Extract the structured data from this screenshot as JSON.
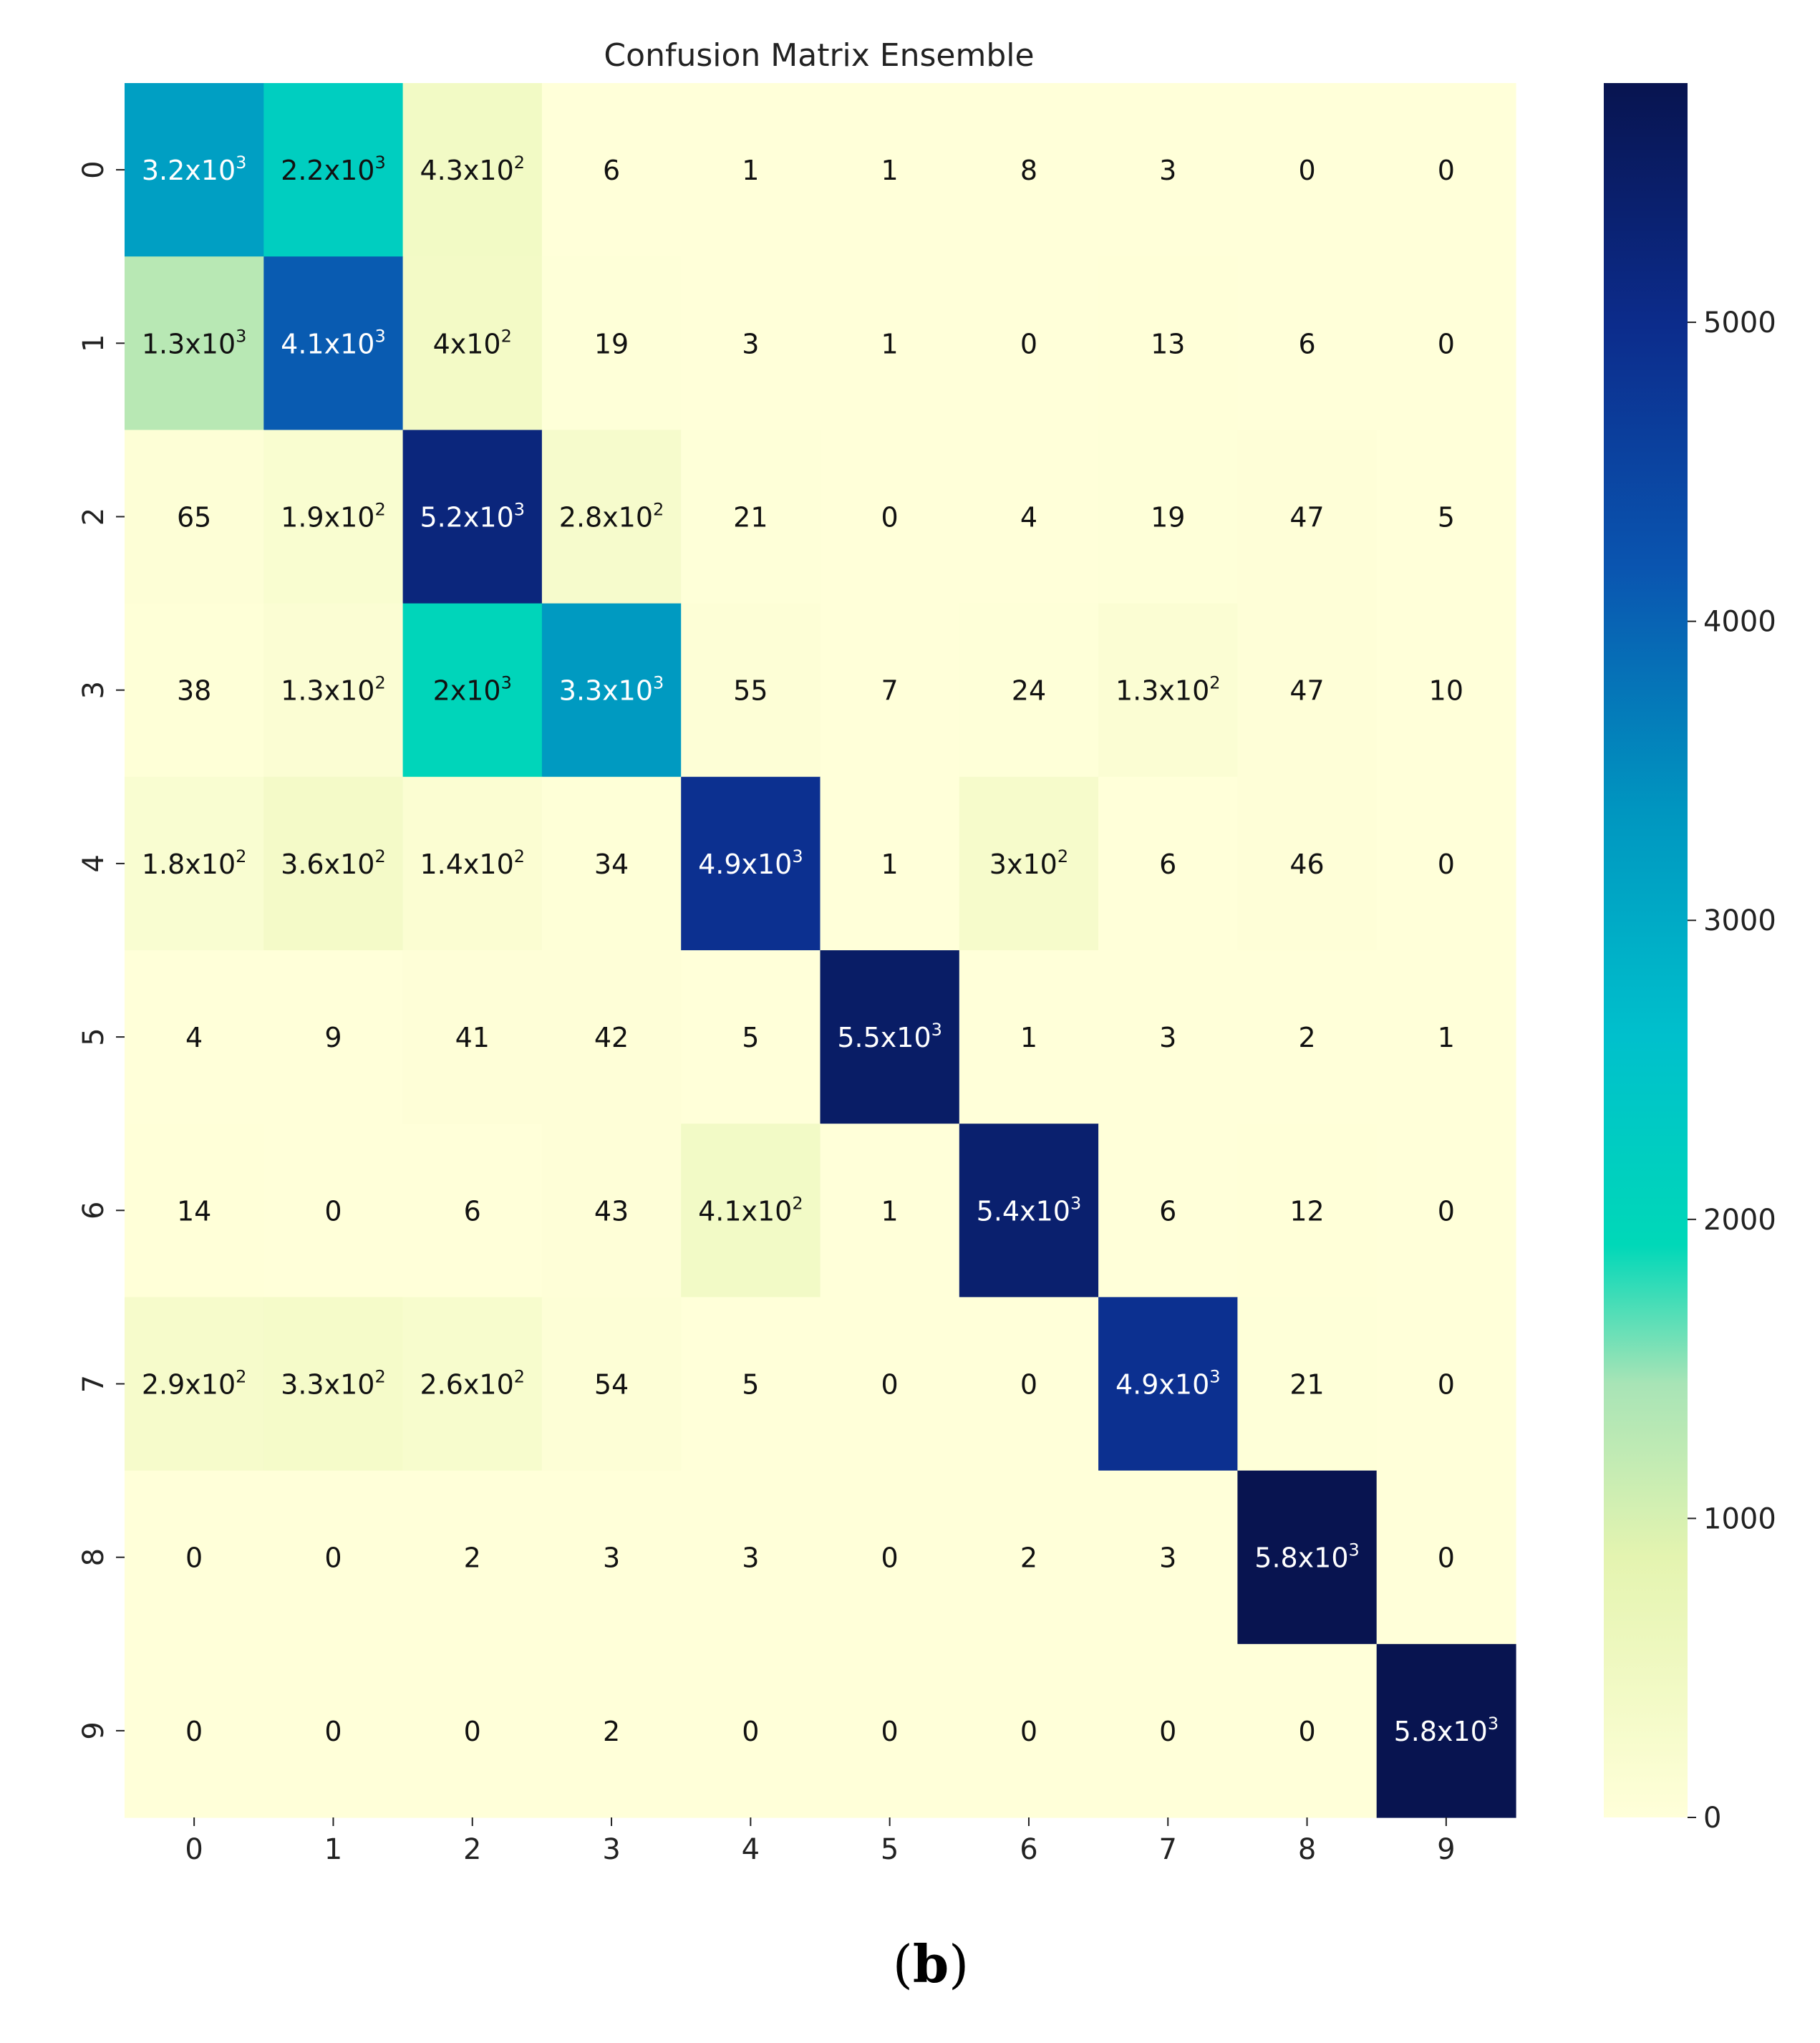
{
  "chart_data": {
    "type": "heatmap",
    "title": "Confusion Matrix Ensemble",
    "x_tick_labels": [
      "0",
      "1",
      "2",
      "3",
      "4",
      "5",
      "6",
      "7",
      "8",
      "9"
    ],
    "y_tick_labels": [
      "0",
      "1",
      "2",
      "3",
      "4",
      "5",
      "6",
      "7",
      "8",
      "9"
    ],
    "values": [
      [
        3200,
        2200,
        430,
        6,
        1,
        1,
        8,
        3,
        0,
        0
      ],
      [
        1300,
        4100,
        400,
        19,
        3,
        1,
        0,
        13,
        6,
        0
      ],
      [
        65,
        190,
        5200,
        280,
        21,
        0,
        4,
        19,
        47,
        5
      ],
      [
        38,
        130,
        2000,
        3300,
        55,
        7,
        24,
        130,
        47,
        10
      ],
      [
        180,
        360,
        140,
        34,
        4900,
        1,
        300,
        6,
        46,
        0
      ],
      [
        4,
        9,
        41,
        42,
        5,
        5500,
        1,
        3,
        2,
        1
      ],
      [
        14,
        0,
        6,
        43,
        410,
        1,
        5400,
        6,
        12,
        0
      ],
      [
        290,
        330,
        260,
        54,
        5,
        0,
        0,
        4900,
        21,
        0
      ],
      [
        0,
        0,
        2,
        3,
        3,
        0,
        2,
        3,
        5800,
        0
      ],
      [
        0,
        0,
        0,
        2,
        0,
        0,
        0,
        0,
        0,
        5800
      ]
    ],
    "cell_labels": [
      [
        [
          "3.2x10",
          "3"
        ],
        [
          "2.2x10",
          "3"
        ],
        [
          "4.3x10",
          "2"
        ],
        [
          "6",
          ""
        ],
        [
          "1",
          ""
        ],
        [
          "1",
          ""
        ],
        [
          "8",
          ""
        ],
        [
          "3",
          ""
        ],
        [
          "0",
          ""
        ],
        [
          "0",
          ""
        ]
      ],
      [
        [
          "1.3x10",
          "3"
        ],
        [
          "4.1x10",
          "3"
        ],
        [
          "4x10",
          "2"
        ],
        [
          "19",
          ""
        ],
        [
          "3",
          ""
        ],
        [
          "1",
          ""
        ],
        [
          "0",
          ""
        ],
        [
          "13",
          ""
        ],
        [
          "6",
          ""
        ],
        [
          "0",
          ""
        ]
      ],
      [
        [
          "65",
          ""
        ],
        [
          "1.9x10",
          "2"
        ],
        [
          "5.2x10",
          "3"
        ],
        [
          "2.8x10",
          "2"
        ],
        [
          "21",
          ""
        ],
        [
          "0",
          ""
        ],
        [
          "4",
          ""
        ],
        [
          "19",
          ""
        ],
        [
          "47",
          ""
        ],
        [
          "5",
          ""
        ]
      ],
      [
        [
          "38",
          ""
        ],
        [
          "1.3x10",
          "2"
        ],
        [
          "2x10",
          "3"
        ],
        [
          "3.3x10",
          "3"
        ],
        [
          "55",
          ""
        ],
        [
          "7",
          ""
        ],
        [
          "24",
          ""
        ],
        [
          "1.3x10",
          "2"
        ],
        [
          "47",
          ""
        ],
        [
          "10",
          ""
        ]
      ],
      [
        [
          "1.8x10",
          "2"
        ],
        [
          "3.6x10",
          "2"
        ],
        [
          "1.4x10",
          "2"
        ],
        [
          "34",
          ""
        ],
        [
          "4.9x10",
          "3"
        ],
        [
          "1",
          ""
        ],
        [
          "3x10",
          "2"
        ],
        [
          "6",
          ""
        ],
        [
          "46",
          ""
        ],
        [
          "0",
          ""
        ]
      ],
      [
        [
          "4",
          ""
        ],
        [
          "9",
          ""
        ],
        [
          "41",
          ""
        ],
        [
          "42",
          ""
        ],
        [
          "5",
          ""
        ],
        [
          "5.5x10",
          "3"
        ],
        [
          "1",
          ""
        ],
        [
          "3",
          ""
        ],
        [
          "2",
          ""
        ],
        [
          "1",
          ""
        ]
      ],
      [
        [
          "14",
          ""
        ],
        [
          "0",
          ""
        ],
        [
          "6",
          ""
        ],
        [
          "43",
          ""
        ],
        [
          "4.1x10",
          "2"
        ],
        [
          "1",
          ""
        ],
        [
          "5.4x10",
          "3"
        ],
        [
          "6",
          ""
        ],
        [
          "12",
          ""
        ],
        [
          "0",
          ""
        ]
      ],
      [
        [
          "2.9x10",
          "2"
        ],
        [
          "3.3x10",
          "2"
        ],
        [
          "2.6x10",
          "2"
        ],
        [
          "54",
          ""
        ],
        [
          "5",
          ""
        ],
        [
          "0",
          ""
        ],
        [
          "0",
          ""
        ],
        [
          "4.9x10",
          "3"
        ],
        [
          "21",
          ""
        ],
        [
          "0",
          ""
        ]
      ],
      [
        [
          "0",
          ""
        ],
        [
          "0",
          ""
        ],
        [
          "2",
          ""
        ],
        [
          "3",
          ""
        ],
        [
          "3",
          ""
        ],
        [
          "0",
          ""
        ],
        [
          "2",
          ""
        ],
        [
          "3",
          ""
        ],
        [
          "5.8x10",
          "3"
        ],
        [
          "0",
          ""
        ]
      ],
      [
        [
          "0",
          ""
        ],
        [
          "0",
          ""
        ],
        [
          "0",
          ""
        ],
        [
          "2",
          ""
        ],
        [
          "0",
          ""
        ],
        [
          "0",
          ""
        ],
        [
          "0",
          ""
        ],
        [
          "0",
          ""
        ],
        [
          "0",
          ""
        ],
        [
          "5.8x10",
          "3"
        ]
      ]
    ],
    "colorbar": {
      "min": 0,
      "max": 5800,
      "ticks": [
        0,
        1000,
        2000,
        3000,
        4000,
        5000
      ],
      "tick_labels": [
        "0",
        "1000",
        "2000",
        "3000",
        "4000",
        "5000"
      ],
      "colormap": "YlGnBu-style"
    },
    "colors": {
      "stops": [
        [
          0.0,
          "#ffffd9"
        ],
        [
          0.15,
          "#e4f4b0"
        ],
        [
          0.25,
          "#a8e4b6"
        ],
        [
          0.33,
          "#00d8b8"
        ],
        [
          0.45,
          "#00c0cc"
        ],
        [
          0.58,
          "#0096c0"
        ],
        [
          0.72,
          "#0a55b0"
        ],
        [
          0.86,
          "#0c2c8c"
        ],
        [
          1.0,
          "#081450"
        ]
      ]
    },
    "grid": false
  },
  "caption": {
    "open": "(",
    "letter": "b",
    "close": ")"
  }
}
